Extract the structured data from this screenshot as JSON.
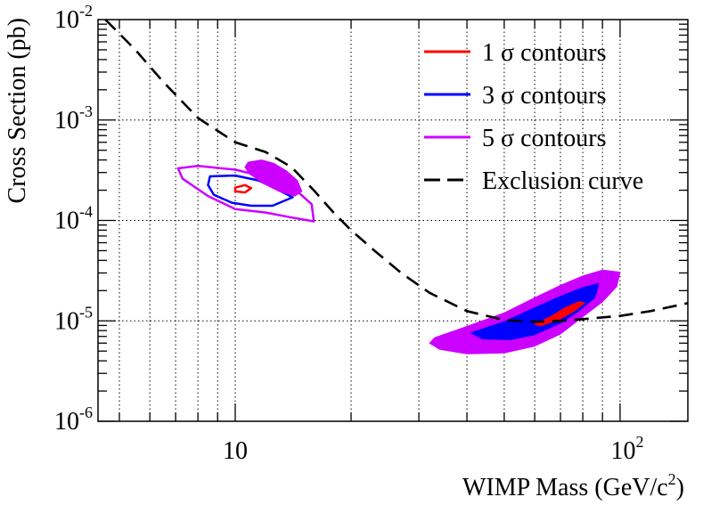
{
  "chart_data": {
    "type": "contour",
    "title": "",
    "xlabel": "WIMP Mass (GeV/c",
    "xlabel_sup": "2",
    "xlabel_close": ")",
    "ylabel": "Cross Section (pb)",
    "xscale": "log",
    "yscale": "log",
    "xlim": [
      4.4,
      150
    ],
    "ylim": [
      1e-06,
      0.01
    ],
    "grid": true,
    "x_ticks": [
      {
        "value": 10,
        "base": "10",
        "exp": ""
      },
      {
        "value": 100,
        "base": "10",
        "exp": "2"
      }
    ],
    "y_ticks": [
      {
        "value": 1e-06,
        "base": "10",
        "exp": "-6"
      },
      {
        "value": 1e-05,
        "base": "10",
        "exp": "-5"
      },
      {
        "value": 0.0001,
        "base": "10",
        "exp": "-4"
      },
      {
        "value": 0.001,
        "base": "10",
        "exp": "-3"
      },
      {
        "value": 0.01,
        "base": "10",
        "exp": "-2"
      }
    ],
    "legend": {
      "position": "top-right",
      "entries": [
        {
          "label": "1 σ contours",
          "color": "#ff0000",
          "style": "solid"
        },
        {
          "label": "3 σ contours",
          "color": "#0000ff",
          "style": "solid"
        },
        {
          "label": "5 σ contours",
          "color": "#cc00ff",
          "style": "solid"
        },
        {
          "label": "Exclusion curve",
          "color": "#000000",
          "style": "dashed"
        }
      ]
    },
    "colors": {
      "sigma1": "#ff0000",
      "sigma3": "#0000ff",
      "sigma5": "#cc00ff",
      "exclusion": "#000000"
    },
    "exclusion_curve": [
      [
        4.6,
        0.01
      ],
      [
        5.5,
        0.005
      ],
      [
        6.5,
        0.0024
      ],
      [
        8,
        0.00105
      ],
      [
        10,
        0.0006
      ],
      [
        12,
        0.00048
      ],
      [
        14,
        0.00034
      ],
      [
        16,
        0.0002
      ],
      [
        18,
        0.00012
      ],
      [
        20,
        8e-05
      ],
      [
        23,
        5e-05
      ],
      [
        27,
        3e-05
      ],
      [
        32,
        1.9e-05
      ],
      [
        40,
        1.25e-05
      ],
      [
        50,
        1.02e-05
      ],
      [
        60,
        9.8e-06
      ],
      [
        70,
        1e-05
      ],
      [
        80,
        1.04e-05
      ],
      [
        100,
        1.12e-05
      ],
      [
        120,
        1.25e-05
      ],
      [
        150,
        1.5e-05
      ]
    ],
    "contour_regions": [
      {
        "name": "low-mass-region",
        "filled": false,
        "levels": [
          {
            "sigma": 5,
            "points": [
              [
                7.1,
                0.00033
              ],
              [
                8,
                0.00035
              ],
              [
                10,
                0.00032
              ],
              [
                12,
                0.00027
              ],
              [
                14,
                0.00022
              ],
              [
                15.8,
                0.000145
              ],
              [
                16,
                9.8e-05
              ],
              [
                14,
                0.000107
              ],
              [
                12,
                0.00012
              ],
              [
                10,
                0.00013
              ],
              [
                8.5,
                0.000175
              ],
              [
                7.3,
                0.00026
              ]
            ]
          },
          {
            "sigma": 3,
            "points": [
              [
                8.6,
                0.000275
              ],
              [
                10,
                0.00028
              ],
              [
                11.5,
                0.00025
              ],
              [
                12.8,
                0.000205
              ],
              [
                14.1,
                0.00017
              ],
              [
                12.5,
                0.00014
              ],
              [
                11,
                0.00014
              ],
              [
                9.8,
                0.00015
              ],
              [
                8.8,
                0.00018
              ],
              [
                8.5,
                0.000225
              ]
            ]
          },
          {
            "sigma": 1,
            "points": [
              [
                10,
                0.000212
              ],
              [
                10.6,
                0.000225
              ],
              [
                11,
                0.00021
              ],
              [
                10.6,
                0.00019
              ],
              [
                10,
                0.000195
              ]
            ]
          }
        ]
      },
      {
        "name": "low-mass-filled-blob",
        "filled": true,
        "levels": [
          {
            "sigma": 5,
            "points": [
              [
                10.8,
                0.00038
              ],
              [
                11.7,
                0.0004
              ],
              [
                12.6,
                0.00037
              ],
              [
                13.6,
                0.00031
              ],
              [
                14.5,
                0.00025
              ],
              [
                14.9,
                0.000195
              ],
              [
                14.3,
                0.000175
              ],
              [
                13,
                0.000195
              ],
              [
                11.8,
                0.000235
              ],
              [
                10.9,
                0.00029
              ],
              [
                10.6,
                0.00034
              ]
            ]
          }
        ]
      },
      {
        "name": "high-mass-region",
        "filled": true,
        "levels": [
          {
            "sigma": 5,
            "points": [
              [
                33,
                6.8e-06
              ],
              [
                40,
                8.8e-06
              ],
              [
                50,
                1.2e-05
              ],
              [
                60,
                1.7e-05
              ],
              [
                70,
                2.25e-05
              ],
              [
                80,
                2.8e-05
              ],
              [
                90,
                3.2e-05
              ],
              [
                100,
                3.05e-05
              ],
              [
                98,
                2.2e-05
              ],
              [
                90,
                1.55e-05
              ],
              [
                80,
                1.1e-05
              ],
              [
                70,
                7.4e-06
              ],
              [
                60,
                5.6e-06
              ],
              [
                50,
                4.8e-06
              ],
              [
                40,
                4.7e-06
              ],
              [
                34,
                5.2e-06
              ],
              [
                32,
                6e-06
              ]
            ]
          },
          {
            "sigma": 3,
            "points": [
              [
                41,
                7.6e-06
              ],
              [
                50,
                9.8e-06
              ],
              [
                60,
                1.35e-05
              ],
              [
                70,
                1.75e-05
              ],
              [
                80,
                2.15e-05
              ],
              [
                88,
                2.35e-05
              ],
              [
                86,
                1.7e-05
              ],
              [
                78,
                1.25e-05
              ],
              [
                70,
                9.5e-06
              ],
              [
                60,
                7.3e-06
              ],
              [
                52,
                6.5e-06
              ],
              [
                44,
                6.6e-06
              ]
            ]
          },
          {
            "sigma": 1,
            "points": [
              [
                60,
                9.3e-06
              ],
              [
                66,
                1.1e-05
              ],
              [
                72,
                1.35e-05
              ],
              [
                78,
                1.55e-05
              ],
              [
                81,
                1.52e-05
              ],
              [
                76,
                1.25e-05
              ],
              [
                69,
                1.02e-05
              ],
              [
                62,
                8.9e-06
              ]
            ]
          }
        ]
      }
    ]
  }
}
